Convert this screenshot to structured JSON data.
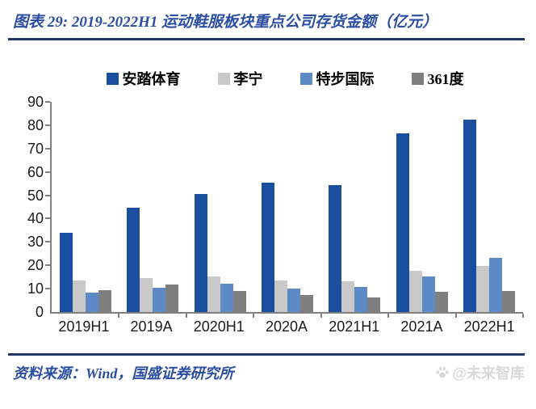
{
  "header": {
    "title": "图表 29:  2019-2022H1 运动鞋服板块重点公司存货金额（亿元）"
  },
  "footer": {
    "source_label": "资料来源：Wind，国盛证券研究所",
    "watermark_text": "@未来智库",
    "watermark_icon": "paw-icon"
  },
  "colors": {
    "title_blue": "#2B4EA2",
    "rule_navy": "#1F3864",
    "axis_gray": "#7F7F7F",
    "watermark_gray": "#D8D8D8"
  },
  "chart_data": {
    "type": "bar",
    "title": "2019-2022H1 运动鞋服板块重点公司存货金额（亿元）",
    "categories": [
      "2019H1",
      "2019A",
      "2020H1",
      "2020A",
      "2021H1",
      "2021A",
      "2022H1"
    ],
    "series": [
      {
        "name": "安踏体育",
        "color": "#1A4E9E",
        "values": [
          33.8,
          44.6,
          50.5,
          55.3,
          54.2,
          76.5,
          82.3
        ]
      },
      {
        "name": "李宁",
        "color": "#C9C9C9",
        "values": [
          13.4,
          14.5,
          15.3,
          13.5,
          13.2,
          17.8,
          19.8
        ]
      },
      {
        "name": "特步国际",
        "color": "#5E8AC7",
        "values": [
          8.3,
          10.4,
          12.1,
          10.0,
          10.9,
          15.3,
          23.3
        ]
      },
      {
        "name": "361度",
        "color": "#7F7F7F",
        "values": [
          9.5,
          11.7,
          8.9,
          7.4,
          6.3,
          8.8,
          9.0
        ]
      }
    ],
    "xlabel": "",
    "ylabel": "",
    "ylim": [
      0,
      90
    ],
    "y_ticks": [
      0,
      10,
      20,
      30,
      40,
      50,
      60,
      70,
      80,
      90
    ],
    "legend_position": "top",
    "grid": false
  }
}
